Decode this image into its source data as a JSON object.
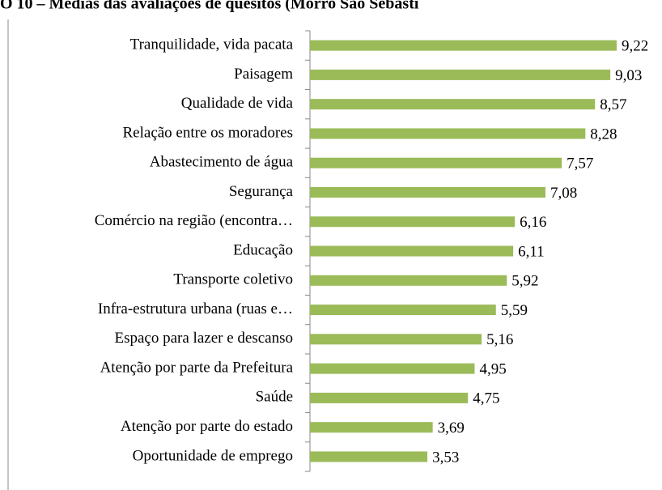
{
  "chart_data": {
    "type": "bar",
    "orientation": "horizontal",
    "title": "O 10 – Médias das avaliações de quesitos (Morro São Sebasti",
    "categories": [
      "Tranquilidade, vida pacata",
      "Paisagem",
      "Qualidade de vida",
      "Relação entre os moradores",
      "Abastecimento de água",
      "Segurança",
      "Comércio na região (encontra…",
      "Educação",
      "Transporte coletivo",
      "Infra-estrutura urbana (ruas e…",
      "Espaço para lazer e descanso",
      "Atenção por parte da Prefeitura",
      "Saúde",
      "Atenção por parte do estado",
      "Oportunidade de emprego"
    ],
    "values": [
      9.22,
      9.03,
      8.57,
      8.28,
      7.57,
      7.08,
      6.16,
      6.11,
      5.92,
      5.59,
      5.16,
      4.95,
      4.75,
      3.69,
      3.53
    ],
    "value_labels": [
      "9,22",
      "9,03",
      "8,57",
      "8,28",
      "7,57",
      "7,08",
      "6,16",
      "6,11",
      "5,92",
      "5,59",
      "5,16",
      "4,95",
      "4,75",
      "3,69",
      "3,53"
    ],
    "color": "#9bbb59"
  }
}
